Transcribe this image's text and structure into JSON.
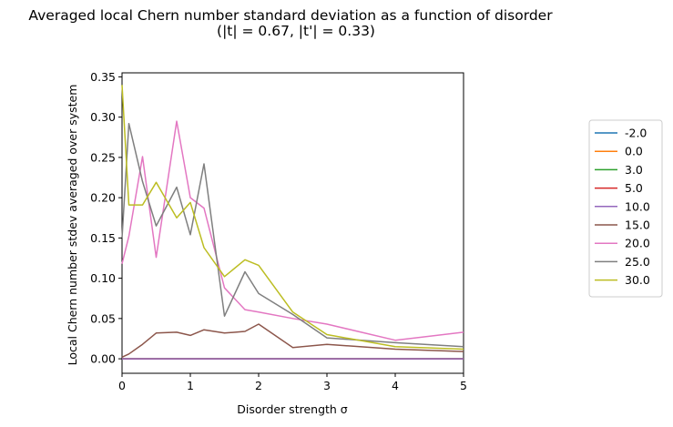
{
  "chart_data": {
    "type": "line",
    "title": "Averaged local Chern number standard deviation as a function of disorder",
    "subtitle": "(|t| = 0.67, |t'| = 0.33)",
    "xlabel": "Disorder strength σ",
    "ylabel": "Local Chern number stdev averaged over system",
    "xlim": [
      0,
      5
    ],
    "ylim": [
      -0.018,
      0.355
    ],
    "xticks": [
      0,
      1,
      2,
      3,
      4,
      5
    ],
    "xtick_labels": [
      "0",
      "1",
      "2",
      "3",
      "4",
      "5"
    ],
    "yticks": [
      0.0,
      0.05,
      0.1,
      0.15,
      0.2,
      0.25,
      0.3,
      0.35
    ],
    "ytick_labels": [
      "0.00",
      "0.05",
      "0.10",
      "0.15",
      "0.20",
      "0.25",
      "0.30",
      "0.35"
    ],
    "grid": false,
    "legend_position": "right",
    "x": [
      0,
      0.1,
      0.3,
      0.5,
      0.8,
      1.0,
      1.2,
      1.5,
      1.8,
      2.0,
      2.5,
      3.0,
      4.0,
      5.0
    ],
    "series": [
      {
        "name": "-2.0",
        "color": "#1f77b4",
        "values": [
          0,
          0,
          0,
          0,
          0,
          0,
          0,
          0,
          0,
          0,
          0,
          0,
          0,
          0
        ]
      },
      {
        "name": "0.0",
        "color": "#ff7f0e",
        "values": [
          0,
          0,
          0,
          0,
          0,
          0,
          0,
          0,
          0,
          0,
          0,
          0,
          0,
          0
        ]
      },
      {
        "name": "3.0",
        "color": "#2ca02c",
        "values": [
          0,
          0,
          0,
          0,
          0,
          0,
          0,
          0,
          0,
          0,
          0,
          0,
          0,
          0
        ]
      },
      {
        "name": "5.0",
        "color": "#d62728",
        "values": [
          0,
          0,
          0,
          0,
          0,
          0,
          0,
          0,
          0,
          0,
          0,
          0,
          0,
          0
        ]
      },
      {
        "name": "10.0",
        "color": "#9467bd",
        "values": [
          0,
          0,
          0,
          0,
          0,
          0,
          0,
          0,
          0,
          0,
          0,
          0,
          0,
          0
        ]
      },
      {
        "name": "15.0",
        "color": "#8c564b",
        "values": [
          0.002,
          0.006,
          0.018,
          0.032,
          0.033,
          0.029,
          0.036,
          0.032,
          0.034,
          0.043,
          0.014,
          0.018,
          0.012,
          0.009
        ]
      },
      {
        "name": "20.0",
        "color": "#e377c2",
        "values": [
          0.118,
          0.152,
          0.251,
          0.126,
          0.295,
          0.2,
          0.187,
          0.088,
          0.061,
          0.058,
          0.05,
          0.043,
          0.023,
          0.033
        ]
      },
      {
        "name": "25.0",
        "color": "#7f7f7f",
        "values": [
          0.15,
          0.292,
          0.22,
          0.165,
          0.213,
          0.154,
          0.242,
          0.053,
          0.108,
          0.081,
          0.055,
          0.026,
          0.02,
          0.015
        ]
      },
      {
        "name": "30.0",
        "color": "#bcbd22",
        "values": [
          0.34,
          0.191,
          0.191,
          0.219,
          0.175,
          0.194,
          0.138,
          0.102,
          0.123,
          0.116,
          0.058,
          0.03,
          0.015,
          0.012
        ]
      }
    ]
  }
}
